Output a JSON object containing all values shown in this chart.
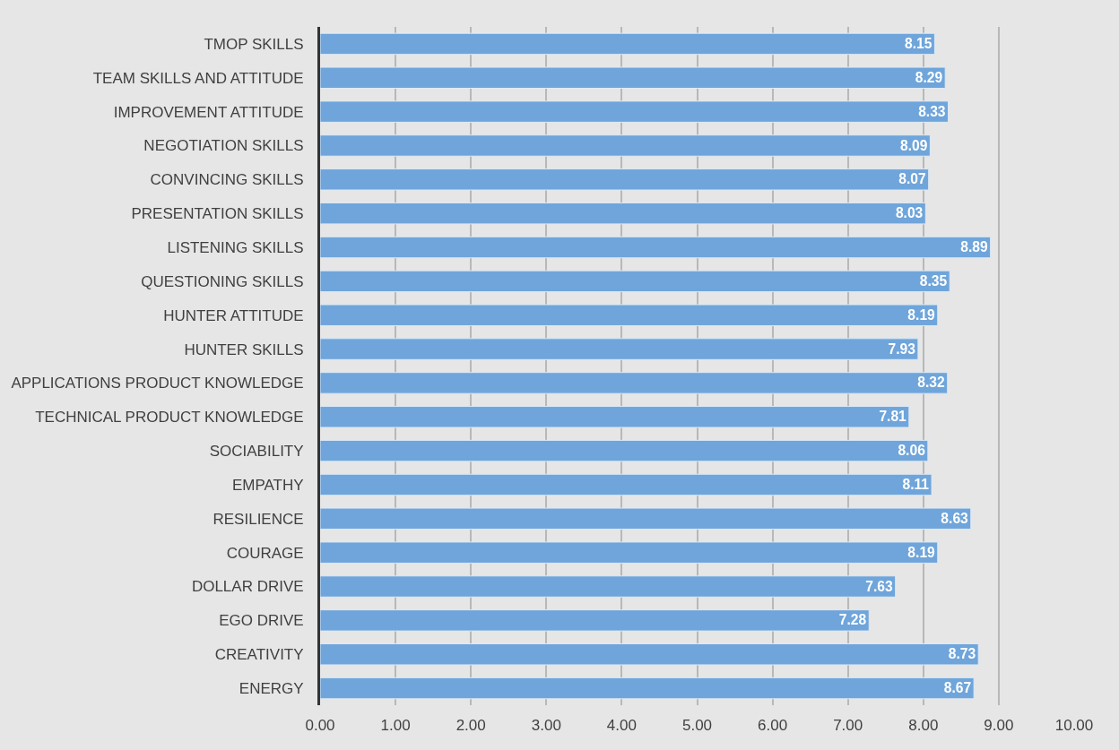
{
  "chart_data": {
    "type": "bar",
    "orientation": "horizontal",
    "categories": [
      "TMOP SKILLS",
      "TEAM SKILLS AND ATTITUDE",
      "IMPROVEMENT ATTITUDE",
      "NEGOTIATION SKILLS",
      "CONVINCING SKILLS",
      "PRESENTATION SKILLS",
      "LISTENING SKILLS",
      "QUESTIONING SKILLS",
      "HUNTER ATTITUDE",
      "HUNTER SKILLS",
      "APPLICATIONS PRODUCT KNOWLEDGE",
      "TECHNICAL PRODUCT KNOWLEDGE",
      "SOCIABILITY",
      "EMPATHY",
      "RESILIENCE",
      "COURAGE",
      "DOLLAR DRIVE",
      "EGO DRIVE",
      "CREATIVITY",
      "ENERGY"
    ],
    "values": [
      8.15,
      8.29,
      8.33,
      8.09,
      8.07,
      8.03,
      8.89,
      8.35,
      8.19,
      7.93,
      8.32,
      7.81,
      8.06,
      8.11,
      8.63,
      8.19,
      7.63,
      7.28,
      8.73,
      8.67
    ],
    "color": "#6fa5da",
    "xlim": [
      0,
      10
    ],
    "xticks": [
      {
        "value": 0,
        "label": "0.00"
      },
      {
        "value": 1,
        "label": "1.00"
      },
      {
        "value": 2,
        "label": "2.00"
      },
      {
        "value": 3,
        "label": "3.00"
      },
      {
        "value": 4,
        "label": "4.00"
      },
      {
        "value": 5,
        "label": "5.00"
      },
      {
        "value": 6,
        "label": "6.00"
      },
      {
        "value": 7,
        "label": "7.00"
      },
      {
        "value": 8,
        "label": "8.00"
      },
      {
        "value": 9,
        "label": "9.00"
      },
      {
        "value": 10,
        "label": "10.00"
      }
    ],
    "grid": "x",
    "data_labels": true
  }
}
